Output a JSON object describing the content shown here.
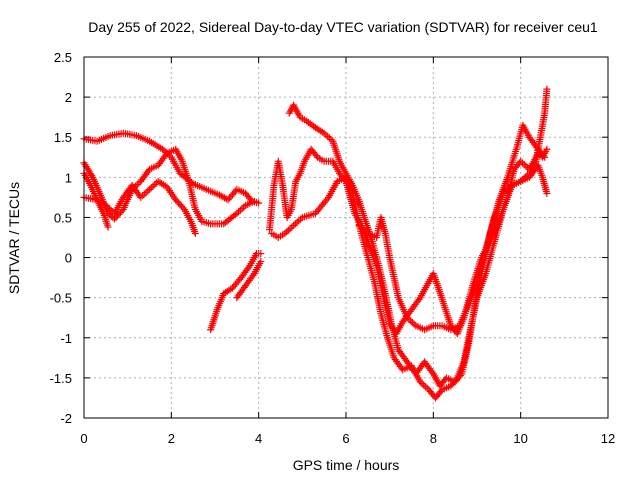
{
  "chart_data": {
    "type": "scatter",
    "title": "Day 255 of 2022, Sidereal Day-to-day VTEC variation (SDTVAR) for receiver ceu1",
    "xlabel": "GPS time / hours",
    "ylabel": "SDTVAR / TECUs",
    "xlim": [
      0,
      12
    ],
    "ylim": [
      -2,
      2.5
    ],
    "xticks": [
      "0",
      "2",
      "4",
      "6",
      "8",
      "10",
      "12"
    ],
    "yticks": [
      "-2",
      "-1.5",
      "-1",
      "-0.5",
      "0",
      "0.5",
      "1",
      "1.5",
      "2",
      "2.5"
    ],
    "grid": true,
    "marker": "plus",
    "color": "#ff0000",
    "series": [
      {
        "points": [
          [
            0,
            1.48
          ],
          [
            0.3,
            1.45
          ],
          [
            0.6,
            1.52
          ],
          [
            0.9,
            1.55
          ],
          [
            1.2,
            1.52
          ],
          [
            1.5,
            1.45
          ],
          [
            1.8,
            1.35
          ],
          [
            2.0,
            1.25
          ],
          [
            2.2,
            1.05
          ],
          [
            2.5,
            0.92
          ],
          [
            2.8,
            0.85
          ],
          [
            3.1,
            0.78
          ],
          [
            3.3,
            0.72
          ],
          [
            3.5,
            0.85
          ],
          [
            3.7,
            0.8
          ],
          [
            3.85,
            0.7
          ],
          [
            4.0,
            0.68
          ]
        ]
      },
      {
        "points": [
          [
            0,
            1.18
          ],
          [
            0.2,
            1.0
          ],
          [
            0.4,
            0.75
          ],
          [
            0.55,
            0.55
          ],
          [
            0.7,
            0.48
          ],
          [
            0.9,
            0.6
          ],
          [
            1.1,
            0.85
          ],
          [
            1.3,
            0.95
          ],
          [
            1.5,
            1.1
          ],
          [
            1.7,
            1.15
          ],
          [
            1.9,
            1.3
          ],
          [
            2.1,
            1.35
          ],
          [
            2.25,
            1.2
          ],
          [
            2.4,
            0.95
          ],
          [
            2.55,
            0.6
          ],
          [
            2.7,
            0.45
          ],
          [
            2.9,
            0.42
          ],
          [
            3.2,
            0.42
          ],
          [
            3.5,
            0.55
          ],
          [
            3.7,
            0.65
          ],
          [
            3.9,
            0.7
          ]
        ]
      },
      {
        "points": [
          [
            0,
            0.75
          ],
          [
            0.3,
            0.72
          ],
          [
            0.5,
            0.65
          ],
          [
            0.7,
            0.55
          ],
          [
            0.9,
            0.75
          ],
          [
            1.1,
            0.9
          ],
          [
            1.3,
            0.75
          ],
          [
            1.5,
            0.85
          ],
          [
            1.7,
            0.95
          ],
          [
            1.9,
            0.88
          ],
          [
            2.1,
            0.72
          ],
          [
            2.3,
            0.6
          ],
          [
            2.45,
            0.45
          ],
          [
            2.55,
            0.3
          ]
        ]
      },
      {
        "points": [
          [
            0,
            1.05
          ],
          [
            0.15,
            0.9
          ],
          [
            0.3,
            0.72
          ],
          [
            0.45,
            0.55
          ],
          [
            0.55,
            0.38
          ]
        ]
      },
      {
        "points": [
          [
            2.9,
            -0.9
          ],
          [
            3.05,
            -0.65
          ],
          [
            3.2,
            -0.45
          ],
          [
            3.4,
            -0.38
          ],
          [
            3.6,
            -0.25
          ],
          [
            3.8,
            -0.1
          ],
          [
            3.95,
            0.05
          ],
          [
            4.05,
            0.05
          ]
        ]
      },
      {
        "points": [
          [
            3.5,
            -0.5
          ],
          [
            3.7,
            -0.35
          ],
          [
            3.9,
            -0.2
          ],
          [
            4.05,
            -0.05
          ]
        ]
      },
      {
        "points": [
          [
            4.25,
            0.35
          ],
          [
            4.35,
            0.9
          ],
          [
            4.45,
            1.2
          ],
          [
            4.55,
            0.9
          ],
          [
            4.65,
            0.5
          ],
          [
            4.75,
            0.6
          ],
          [
            4.85,
            0.95
          ],
          [
            4.95,
            1.05
          ],
          [
            5.05,
            1.2
          ],
          [
            5.2,
            1.35
          ],
          [
            5.35,
            1.25
          ],
          [
            5.5,
            1.2
          ],
          [
            5.7,
            1.2
          ],
          [
            5.85,
            1.05
          ],
          [
            6.0,
            0.95
          ],
          [
            6.1,
            0.75
          ],
          [
            6.2,
            0.55
          ],
          [
            6.35,
            0.4
          ],
          [
            6.5,
            0.2
          ],
          [
            6.7,
            -0.1
          ],
          [
            6.8,
            -0.35
          ],
          [
            6.9,
            -0.6
          ],
          [
            7.0,
            -0.82
          ],
          [
            7.15,
            -0.95
          ],
          [
            7.3,
            -0.8
          ],
          [
            7.5,
            -0.65
          ],
          [
            7.7,
            -0.5
          ],
          [
            7.9,
            -0.3
          ],
          [
            8.0,
            -0.2
          ],
          [
            8.1,
            -0.35
          ],
          [
            8.25,
            -0.6
          ],
          [
            8.4,
            -0.85
          ],
          [
            8.55,
            -0.95
          ],
          [
            8.7,
            -0.75
          ],
          [
            8.9,
            -0.35
          ],
          [
            9.1,
            0.0
          ],
          [
            9.3,
            0.2
          ],
          [
            9.5,
            0.45
          ],
          [
            9.7,
            0.75
          ],
          [
            9.85,
            1.1
          ],
          [
            10.0,
            1.2
          ],
          [
            10.2,
            1.1
          ],
          [
            10.4,
            1.3
          ],
          [
            10.5,
            1.25
          ],
          [
            10.6,
            1.35
          ]
        ]
      },
      {
        "points": [
          [
            4.7,
            1.8
          ],
          [
            4.8,
            1.9
          ],
          [
            4.95,
            1.75
          ],
          [
            5.1,
            1.7
          ],
          [
            5.3,
            1.62
          ],
          [
            5.5,
            1.55
          ],
          [
            5.7,
            1.45
          ],
          [
            5.85,
            1.2
          ],
          [
            6.0,
            1.05
          ],
          [
            6.15,
            0.9
          ],
          [
            6.3,
            0.7
          ],
          [
            6.45,
            0.45
          ],
          [
            6.6,
            0.2
          ],
          [
            6.75,
            -0.1
          ],
          [
            6.9,
            -0.45
          ],
          [
            7.05,
            -0.85
          ],
          [
            7.2,
            -1.15
          ],
          [
            7.4,
            -1.3
          ],
          [
            7.6,
            -1.45
          ],
          [
            7.8,
            -1.3
          ],
          [
            8.0,
            -1.45
          ],
          [
            8.15,
            -1.6
          ],
          [
            8.3,
            -1.5
          ],
          [
            8.5,
            -1.55
          ],
          [
            8.65,
            -1.45
          ],
          [
            8.8,
            -1.1
          ],
          [
            8.95,
            -0.6
          ],
          [
            9.1,
            -0.2
          ],
          [
            9.3,
            0.3
          ],
          [
            9.5,
            0.7
          ],
          [
            9.7,
            1.0
          ],
          [
            9.9,
            1.35
          ],
          [
            10.05,
            1.65
          ],
          [
            10.2,
            1.5
          ],
          [
            10.4,
            1.35
          ],
          [
            10.55,
            1.25
          ]
        ]
      },
      {
        "points": [
          [
            4.3,
            0.3
          ],
          [
            4.45,
            0.25
          ],
          [
            4.6,
            0.3
          ],
          [
            4.8,
            0.4
          ],
          [
            5.0,
            0.5
          ],
          [
            5.3,
            0.55
          ],
          [
            5.6,
            0.75
          ],
          [
            5.8,
            0.95
          ],
          [
            6.0,
            1.0
          ],
          [
            6.15,
            0.8
          ],
          [
            6.25,
            0.55
          ],
          [
            6.35,
            0.3
          ],
          [
            6.5,
            0.0
          ],
          [
            6.65,
            -0.3
          ],
          [
            6.8,
            -0.7
          ],
          [
            6.95,
            -1.0
          ],
          [
            7.1,
            -1.25
          ],
          [
            7.3,
            -1.4
          ],
          [
            7.5,
            -1.35
          ],
          [
            7.7,
            -1.55
          ],
          [
            7.9,
            -1.65
          ],
          [
            8.05,
            -1.75
          ],
          [
            8.2,
            -1.65
          ],
          [
            8.4,
            -1.6
          ],
          [
            8.55,
            -1.5
          ],
          [
            8.7,
            -1.3
          ],
          [
            8.85,
            -0.9
          ],
          [
            9.0,
            -0.5
          ],
          [
            9.2,
            -0.2
          ],
          [
            9.4,
            0.2
          ],
          [
            9.6,
            0.6
          ],
          [
            9.8,
            0.9
          ],
          [
            10.0,
            0.95
          ],
          [
            10.2,
            1.05
          ],
          [
            10.35,
            1.2
          ],
          [
            10.45,
            1.5
          ],
          [
            10.55,
            1.8
          ],
          [
            10.6,
            2.1
          ]
        ]
      },
      {
        "points": [
          [
            6.3,
            0.4
          ],
          [
            6.5,
            0.3
          ],
          [
            6.7,
            0.25
          ],
          [
            6.8,
            0.5
          ],
          [
            6.9,
            0.3
          ],
          [
            7.0,
            0.0
          ],
          [
            7.2,
            -0.5
          ],
          [
            7.4,
            -0.75
          ],
          [
            7.6,
            -0.85
          ],
          [
            7.8,
            -0.9
          ],
          [
            8.0,
            -0.85
          ],
          [
            8.2,
            -0.85
          ],
          [
            8.4,
            -0.9
          ],
          [
            8.6,
            -0.85
          ],
          [
            8.8,
            -0.6
          ],
          [
            9.0,
            -0.3
          ],
          [
            9.2,
            0.1
          ],
          [
            9.4,
            0.5
          ],
          [
            9.6,
            0.8
          ],
          [
            9.8,
            0.9
          ],
          [
            10.0,
            0.95
          ],
          [
            10.2,
            1.0
          ],
          [
            10.4,
            1.15
          ],
          [
            10.5,
            1.0
          ],
          [
            10.6,
            0.8
          ]
        ]
      }
    ]
  }
}
